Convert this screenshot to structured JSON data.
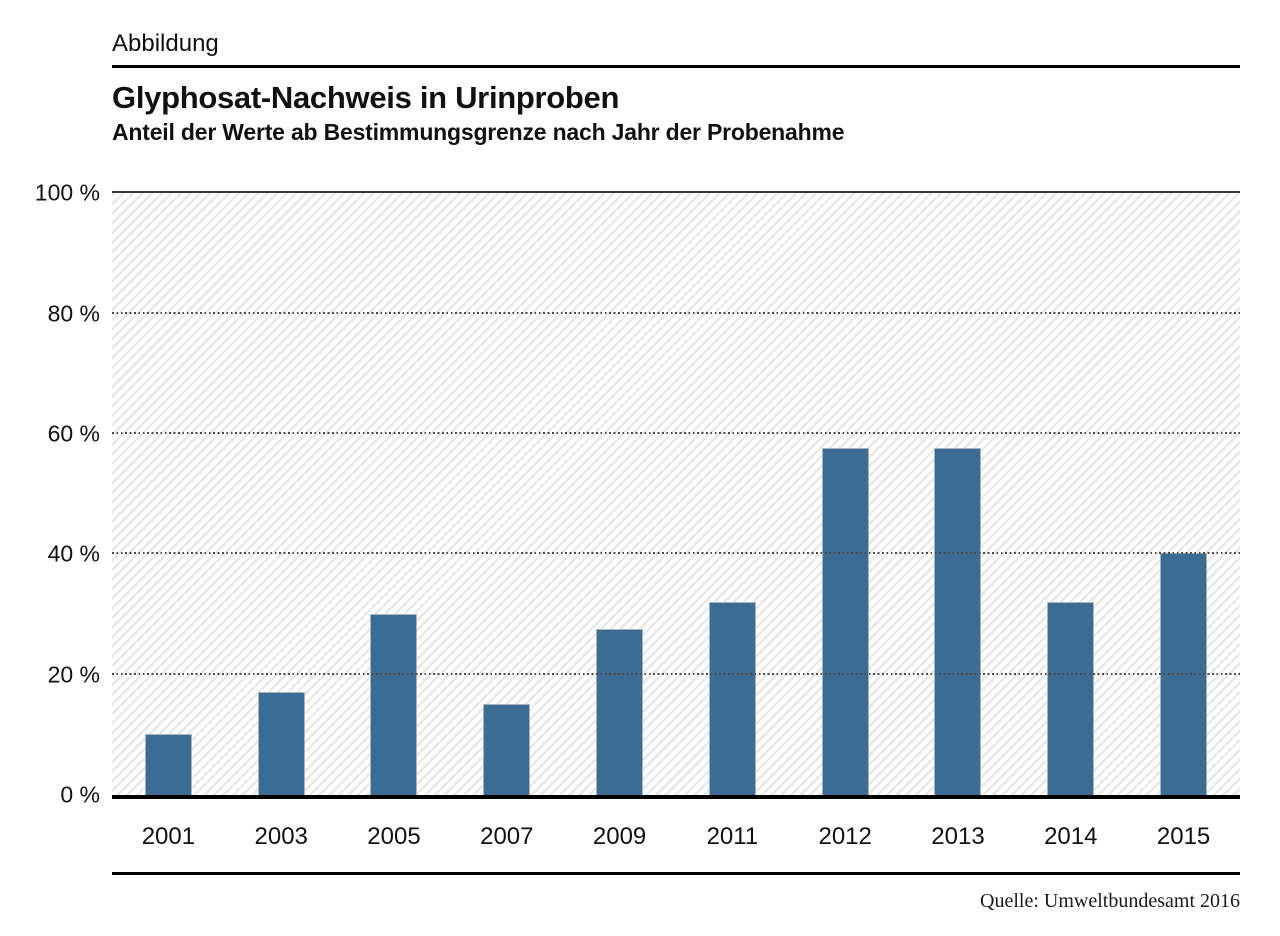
{
  "header": {
    "figure_label": "Abbildung"
  },
  "chart_data": {
    "type": "bar",
    "title": "Glyphosat-Nachweis in Urinproben",
    "subtitle": "Anteil der Werte ab Bestimmungsgrenze nach Jahr der Probenahme",
    "source": "Quelle: Umweltbundesamt 2016",
    "categories": [
      "2001",
      "2003",
      "2005",
      "2007",
      "2009",
      "2011",
      "2012",
      "2013",
      "2014",
      "2015"
    ],
    "values": [
      10,
      17,
      30,
      15,
      27.5,
      32,
      57.5,
      57.5,
      32,
      40
    ],
    "xlabel": "",
    "ylabel": "",
    "ylim": [
      0,
      100
    ],
    "yticks": [
      {
        "v": 100,
        "label": "100 %"
      },
      {
        "v": 80,
        "label": "80 %"
      },
      {
        "v": 60,
        "label": "60 %"
      },
      {
        "v": 40,
        "label": "40 %"
      },
      {
        "v": 20,
        "label": "20 %"
      },
      {
        "v": 0,
        "label": "0 %"
      }
    ],
    "grid": "dotted horizontal lines at 20% steps",
    "legend": "none",
    "plot_background": "light diagonal stripes"
  },
  "colors": {
    "bar": "#3c6b94",
    "bar_border": "#a9b4bd",
    "text": "#111111",
    "grid_dot": "#4a4a4a",
    "axis": "#000000",
    "stripe": "#e9e9e9"
  }
}
